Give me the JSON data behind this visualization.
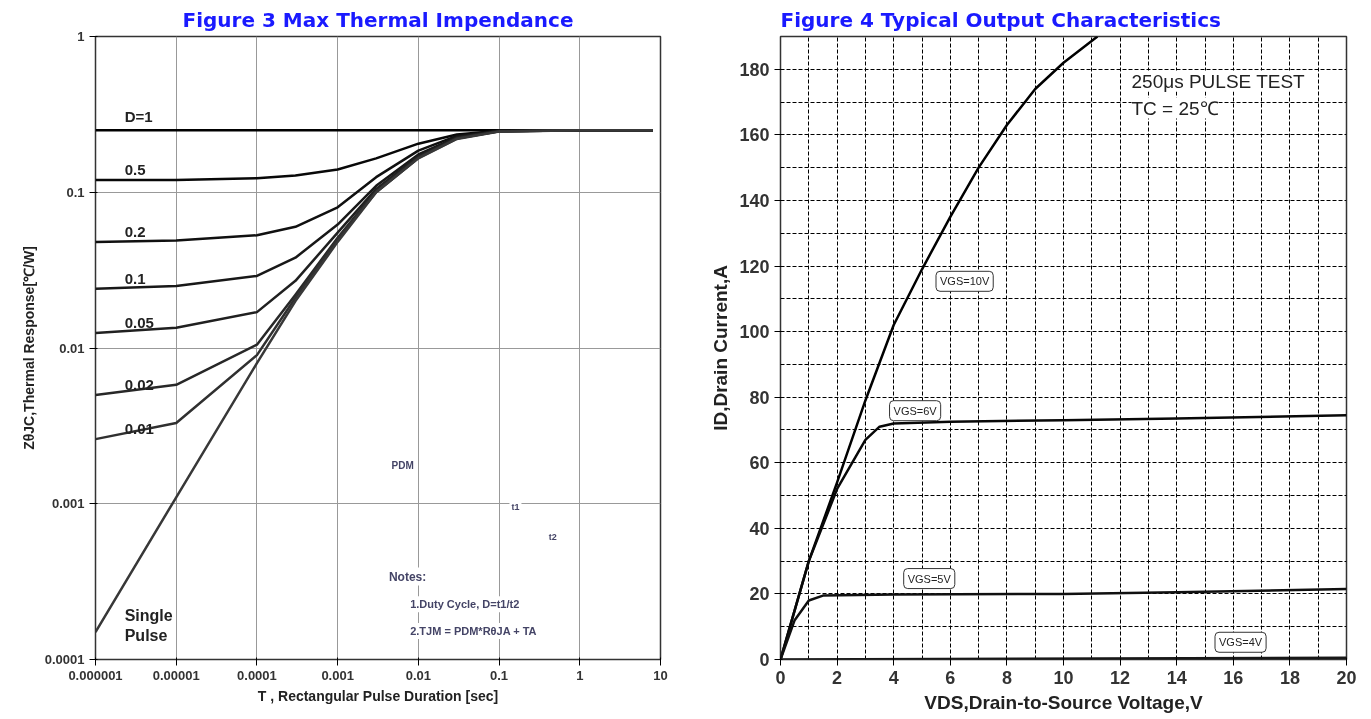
{
  "chart_data": [
    {
      "type": "line",
      "title": "Figure 3 Max Thermal Impendance",
      "xlabel": "T , Rectangular Pulse Duration [sec]",
      "ylabel": "ZθJC,Thermal Response[℃/W]",
      "log": "xy",
      "grid": true,
      "x": [
        1e-06,
        1e-05,
        0.0001,
        0.0003,
        0.001,
        0.003,
        0.01,
        0.03,
        0.1,
        1,
        8
      ],
      "xlim": [
        1e-06,
        10
      ],
      "ylim": [
        0.0001,
        1
      ],
      "xticks": [
        {
          "value": 1e-06,
          "label": "0.000001"
        },
        {
          "value": 1e-05,
          "label": "0.00001"
        },
        {
          "value": 0.0001,
          "label": "0.0001"
        },
        {
          "value": 0.001,
          "label": "0.001"
        },
        {
          "value": 0.01,
          "label": "0.01"
        },
        {
          "value": 0.1,
          "label": "0.1"
        },
        {
          "value": 1,
          "label": "1"
        },
        {
          "value": 10,
          "label": "10"
        }
      ],
      "yticks": [
        {
          "value": 0.0001,
          "label": "0.0001"
        },
        {
          "value": 0.001,
          "label": "0.001"
        },
        {
          "value": 0.01,
          "label": "0.01"
        },
        {
          "value": 0.1,
          "label": "0.1"
        },
        {
          "value": 1,
          "label": "1"
        }
      ],
      "series": [
        {
          "name": "D=1",
          "color": "#000000",
          "values": [
            0.25,
            0.25,
            0.25,
            0.25,
            0.25,
            0.25,
            0.25,
            0.25,
            0.25,
            0.25,
            0.25
          ]
        },
        {
          "name": "0.5",
          "color": "#080808",
          "values": [
            0.12,
            0.12,
            0.123,
            0.128,
            0.14,
            0.165,
            0.205,
            0.235,
            0.248,
            0.25,
            0.25
          ]
        },
        {
          "name": "0.2",
          "color": "#101010",
          "values": [
            0.048,
            0.049,
            0.053,
            0.06,
            0.08,
            0.125,
            0.185,
            0.23,
            0.248,
            0.25,
            0.25
          ]
        },
        {
          "name": "0.1",
          "color": "#181818",
          "values": [
            0.024,
            0.025,
            0.029,
            0.038,
            0.062,
            0.11,
            0.175,
            0.226,
            0.247,
            0.25,
            0.25
          ]
        },
        {
          "name": "0.05",
          "color": "#202020",
          "values": [
            0.0125,
            0.0135,
            0.017,
            0.027,
            0.055,
            0.105,
            0.17,
            0.224,
            0.247,
            0.25,
            0.25
          ]
        },
        {
          "name": "0.02",
          "color": "#282828",
          "values": [
            0.005,
            0.0058,
            0.0105,
            0.022,
            0.051,
            0.102,
            0.167,
            0.222,
            0.246,
            0.25,
            0.25
          ]
        },
        {
          "name": "0.01",
          "color": "#303030",
          "values": [
            0.0026,
            0.0033,
            0.009,
            0.021,
            0.05,
            0.1,
            0.166,
            0.221,
            0.246,
            0.25,
            0.25
          ]
        },
        {
          "name": "Single\nPulse",
          "color": "#383838",
          "values": [
            0.00015,
            0.0011,
            0.008,
            0.02,
            0.048,
            0.1,
            0.165,
            0.22,
            0.245,
            0.25,
            0.25
          ]
        }
      ],
      "annotations": [
        "PDM",
        "t1",
        "t2",
        "Notes:",
        "1.Duty  Cycle, D=t1/t2",
        "2.TJM = PDM*RθJA + TA"
      ]
    },
    {
      "type": "line",
      "title": "Figure 4 Typical Output Characteristics",
      "xlabel": "VDS,Drain-to-Source Voltage,V",
      "ylabel": "ID,Drain Current,A",
      "grid": true,
      "xlim": [
        0,
        20
      ],
      "ylim": [
        0,
        190
      ],
      "xticks": [
        0,
        2,
        4,
        6,
        8,
        10,
        12,
        14,
        16,
        18,
        20
      ],
      "yticks": [
        0,
        20,
        40,
        60,
        80,
        100,
        120,
        140,
        160,
        180
      ],
      "series": [
        {
          "name": "VGS=10V",
          "color": "#000000",
          "x": [
            0,
            0.5,
            1,
            2,
            3,
            4,
            5,
            6,
            7,
            8,
            9,
            10,
            11.2
          ],
          "values": [
            0,
            15,
            30,
            54,
            79,
            102,
            119,
            135,
            150,
            163,
            174,
            182,
            190
          ]
        },
        {
          "name": "VGS=6V",
          "color": "#080808",
          "x": [
            0,
            0.5,
            1,
            2,
            3,
            3.5,
            4,
            6,
            10,
            14,
            20
          ],
          "values": [
            0,
            15,
            30,
            52,
            67,
            71,
            72,
            72.5,
            73,
            73.5,
            74.5
          ]
        },
        {
          "name": "VGS=5V",
          "color": "#101010",
          "x": [
            0,
            0.5,
            1,
            1.5,
            4,
            10,
            14,
            20
          ],
          "values": [
            0,
            12,
            18,
            19.5,
            19.8,
            20,
            20.5,
            21.5
          ]
        },
        {
          "name": "VGS=4V",
          "color": "#181818",
          "x": [
            0,
            20
          ],
          "values": [
            0,
            0.5
          ]
        }
      ],
      "annotations": [
        "250μs PULSE TEST",
        "TC = 25℃"
      ]
    }
  ]
}
